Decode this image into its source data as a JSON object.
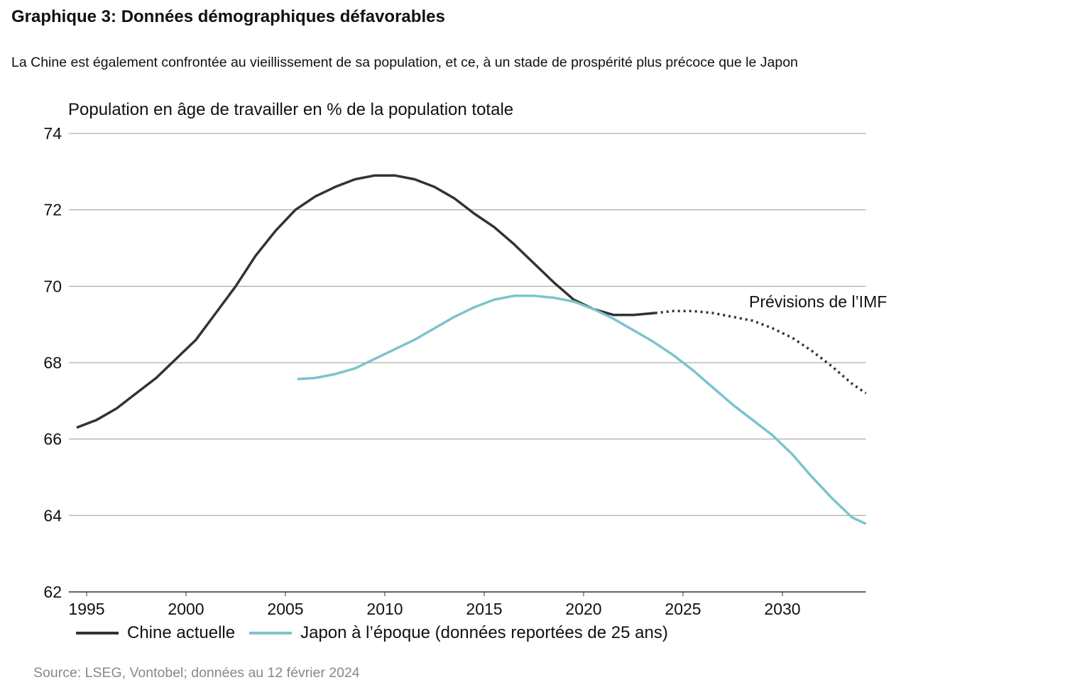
{
  "title": "Graphique 3: Données démographiques défavorables",
  "subtitle": "La Chine est également confrontée au vieillissement de sa population, et ce, à un stade de prospérité plus précoce que le Japon",
  "source": "Source: LSEG, Vontobel; données au 12 février 2024",
  "chart_data": {
    "type": "line",
    "title": "",
    "ylabel": "Population en âge de travailler en % de la population totale",
    "xlabel": "",
    "xlim": [
      1994.1,
      2034.2
    ],
    "ylim": [
      62,
      74
    ],
    "xticks": [
      1995,
      2000,
      2005,
      2010,
      2015,
      2020,
      2025,
      2030
    ],
    "yticks": [
      62,
      64,
      66,
      68,
      70,
      72,
      74
    ],
    "grid": "horizontal",
    "legend_position": "bottom",
    "annotation": "Prévisions de l’IMF",
    "series": [
      {
        "name": "Chine actuelle",
        "color": "#333333",
        "style": "solid",
        "x": [
          1994.5,
          1995.5,
          1996.5,
          1997.5,
          1998.5,
          1999.5,
          2000.5,
          2001.5,
          2002.5,
          2003.5,
          2004.5,
          2005.5,
          2006.5,
          2007.5,
          2008.5,
          2009.5,
          2010.5,
          2011.5,
          2012.5,
          2013.5,
          2014.5,
          2015.5,
          2016.5,
          2017.5,
          2018.5,
          2019.5,
          2020.5,
          2021.5,
          2022.5,
          2023.6
        ],
        "y": [
          66.3,
          66.5,
          66.8,
          67.2,
          67.6,
          68.1,
          68.6,
          69.3,
          70.0,
          70.8,
          71.45,
          72.0,
          72.35,
          72.6,
          72.8,
          72.9,
          72.9,
          72.8,
          72.6,
          72.3,
          71.9,
          71.55,
          71.1,
          70.6,
          70.1,
          69.65,
          69.4,
          69.25,
          69.25,
          69.3
        ],
        "forecast": {
          "style": "dotted",
          "x": [
            2023.6,
            2024.5,
            2025.5,
            2026.5,
            2027.5,
            2028.5,
            2029.5,
            2030.5,
            2031.5,
            2032.5,
            2033.5,
            2034.2
          ],
          "y": [
            69.3,
            69.35,
            69.35,
            69.3,
            69.2,
            69.1,
            68.9,
            68.65,
            68.3,
            67.9,
            67.45,
            67.2
          ]
        }
      },
      {
        "name": "Japon à l’époque (données reportées de 25 ans)",
        "color": "#7cc4cc",
        "style": "solid",
        "x": [
          2005.6,
          2006.5,
          2007.5,
          2008.5,
          2009.5,
          2010.5,
          2011.5,
          2012.5,
          2013.5,
          2014.5,
          2015.5,
          2016.5,
          2017.5,
          2018.5,
          2019.5,
          2020.5,
          2021.5,
          2022.5,
          2023.5,
          2024.5,
          2025.5,
          2026.5,
          2027.5,
          2028.5,
          2029.5,
          2030.5,
          2031.5,
          2032.5,
          2033.5,
          2034.2
        ],
        "y": [
          67.57,
          67.6,
          67.7,
          67.85,
          68.1,
          68.35,
          68.6,
          68.9,
          69.2,
          69.45,
          69.65,
          69.75,
          69.75,
          69.7,
          69.6,
          69.4,
          69.15,
          68.85,
          68.55,
          68.2,
          67.8,
          67.35,
          66.9,
          66.5,
          66.1,
          65.6,
          65.0,
          64.45,
          63.95,
          63.78
        ]
      }
    ]
  }
}
